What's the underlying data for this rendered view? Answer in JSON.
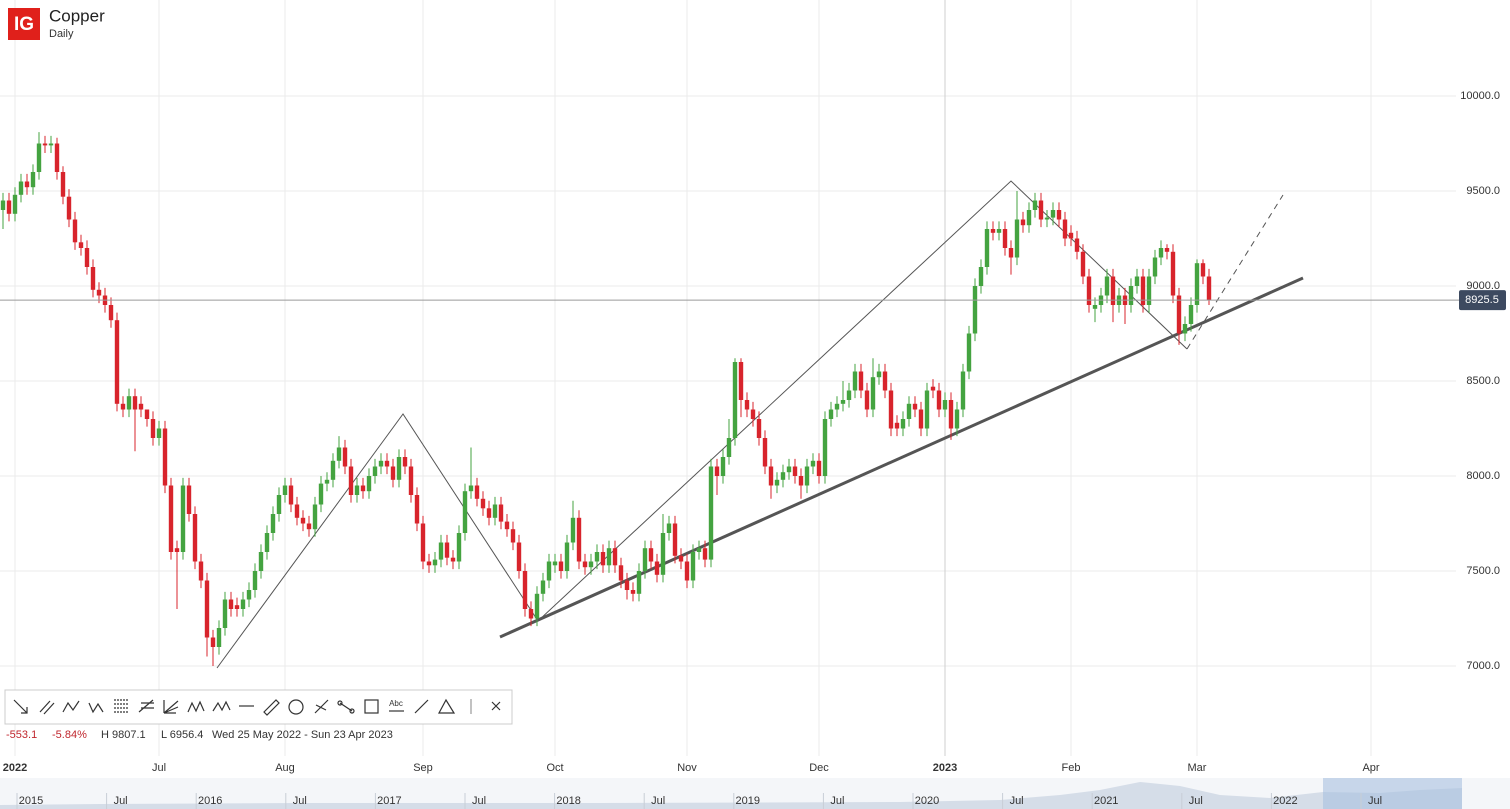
{
  "header": {
    "logo": "IG",
    "title": "Copper",
    "interval": "Daily"
  },
  "stats": {
    "change": "-553.1",
    "change_pct": "-5.84%",
    "high": "H 9807.1",
    "low": "L 6956.4",
    "range": "Wed 25 May 2022 - Sun 23 Apr 2023"
  },
  "toolbar": {
    "text_tool": "Abc"
  },
  "navigator": {
    "labels": [
      "2015",
      "Jul",
      "2016",
      "Jul",
      "2017",
      "Jul",
      "2018",
      "Jul",
      "2019",
      "Jul",
      "2020",
      "Jul",
      "2021",
      "Jul",
      "2022",
      "Jul"
    ]
  },
  "chart_data": {
    "type": "candlestick",
    "up_color": "#44a340",
    "down_color": "#d8242c",
    "grid": true,
    "ylim": [
      6550,
      10500
    ],
    "yticks": [
      {
        "value": 7000,
        "label": "7000.0"
      },
      {
        "value": 7500,
        "label": "7500.0"
      },
      {
        "value": 8000,
        "label": "8000.0"
      },
      {
        "value": 8500,
        "label": "8500.0"
      },
      {
        "value": 9000,
        "label": "9000.0"
      },
      {
        "value": 9500,
        "label": "9500.0"
      },
      {
        "value": 10000,
        "label": "10000.0"
      }
    ],
    "categories": [
      null,
      null,
      "2022",
      null,
      null,
      null,
      null,
      null,
      null,
      null,
      null,
      null,
      null,
      null,
      null,
      null,
      null,
      null,
      null,
      null,
      null,
      null,
      null,
      null,
      null,
      null,
      "Jul",
      null,
      null,
      null,
      null,
      null,
      null,
      null,
      null,
      null,
      null,
      null,
      null,
      null,
      null,
      null,
      null,
      null,
      null,
      null,
      null,
      "Aug",
      null,
      null,
      null,
      null,
      null,
      null,
      null,
      null,
      null,
      null,
      null,
      null,
      null,
      null,
      null,
      null,
      null,
      null,
      null,
      null,
      null,
      null,
      "Sep",
      null,
      null,
      null,
      null,
      null,
      null,
      null,
      null,
      null,
      null,
      null,
      null,
      null,
      null,
      null,
      null,
      null,
      null,
      null,
      null,
      null,
      "Oct",
      null,
      null,
      null,
      null,
      null,
      null,
      null,
      null,
      null,
      null,
      null,
      null,
      null,
      null,
      null,
      null,
      null,
      null,
      null,
      null,
      null,
      "Nov",
      null,
      null,
      null,
      null,
      null,
      null,
      null,
      null,
      null,
      null,
      null,
      null,
      null,
      null,
      null,
      null,
      null,
      null,
      null,
      null,
      null,
      "Dec",
      null,
      null,
      null,
      null,
      null,
      null,
      null,
      null,
      null,
      null,
      null,
      null,
      null,
      null,
      null,
      null,
      null,
      null,
      null,
      null,
      "2023",
      null,
      null,
      null,
      null,
      null,
      null,
      null,
      null,
      null,
      null,
      null,
      null,
      null,
      null,
      null,
      null,
      null,
      null,
      null,
      null,
      "Feb",
      null,
      null,
      null,
      null,
      null,
      null,
      null,
      null,
      null,
      null,
      null,
      null,
      null,
      null,
      null,
      null,
      null,
      null,
      null,
      null,
      "Mar",
      null,
      null,
      null,
      null,
      null,
      null,
      null,
      null,
      null,
      null,
      null,
      null,
      null,
      null,
      null,
      null,
      null,
      null,
      null,
      null,
      null,
      null,
      null,
      null,
      null,
      null,
      null,
      null,
      "Apr",
      null,
      null,
      null,
      null,
      null,
      null,
      null,
      null,
      null,
      null,
      null,
      null
    ],
    "open": [
      9400,
      9450,
      9380,
      9480,
      9550,
      9520,
      9600,
      9750,
      9740,
      9750,
      9600,
      9470,
      9350,
      9230,
      9200,
      9100,
      8980,
      8950,
      8900,
      8820,
      8380,
      8350,
      8420,
      8380,
      8350,
      8300,
      8200,
      8250,
      7950,
      7620,
      7600,
      7950,
      7800,
      7550,
      7450,
      7150,
      7100,
      7200,
      7350,
      7320,
      7300,
      7350,
      7400,
      7500,
      7600,
      7700,
      7800,
      7900,
      7950,
      7850,
      7780,
      7750,
      7720,
      7850,
      7960,
      7980,
      8080,
      8150,
      8050,
      7900,
      7950,
      7920,
      8000,
      8050,
      8080,
      8050,
      7980,
      8100,
      8050,
      7900,
      7750,
      7550,
      7530,
      7560,
      7650,
      7570,
      7550,
      7700,
      7920,
      7950,
      7880,
      7830,
      7780,
      7850,
      7760,
      7720,
      7650,
      7500,
      7300,
      7250,
      7380,
      7450,
      7530,
      7550,
      7500,
      7650,
      7780,
      7550,
      7520,
      7550,
      7600,
      7530,
      7620,
      7530,
      7450,
      7400,
      7380,
      7500,
      7620,
      7550,
      7480,
      7700,
      7750,
      7580,
      7550,
      7450,
      7600,
      7620,
      7560,
      8050,
      8000,
      8100,
      8200,
      8600,
      8400,
      8350,
      8300,
      8200,
      8050,
      7950,
      7980,
      8020,
      8050,
      8000,
      7950,
      8050,
      8080,
      8000,
      8300,
      8350,
      8380,
      8400,
      8450,
      8550,
      8450,
      8350,
      8520,
      8550,
      8450,
      8280,
      8250,
      8300,
      8380,
      8350,
      8250,
      8470,
      8450,
      8350,
      8400,
      8250,
      8350,
      8550,
      8750,
      9000,
      9100,
      9300,
      9280,
      9300,
      9200,
      9150,
      9350,
      9320,
      9400,
      9450,
      9350,
      9360,
      9400,
      9350,
      9280,
      9250,
      9180,
      9050,
      8880,
      8900,
      8950,
      9050,
      8900,
      8950,
      8900,
      9000,
      9050,
      8900,
      9050,
      9150,
      9200,
      9180,
      8950,
      8750,
      8800,
      8900,
      9120,
      9050,
      null,
      null,
      null,
      null,
      null,
      null,
      null,
      null,
      null,
      null,
      null,
      null,
      null,
      null,
      null,
      null,
      null,
      null,
      null,
      null,
      null,
      null,
      null,
      null,
      null,
      null,
      null,
      null,
      null,
      null,
      null,
      null,
      null,
      null,
      null,
      null,
      null,
      null,
      null
    ],
    "high": [
      9490,
      9490,
      9520,
      9590,
      9590,
      9640,
      9810,
      9790,
      9790,
      9780,
      9630,
      9510,
      9390,
      9270,
      9240,
      9140,
      9020,
      8990,
      8940,
      8860,
      8420,
      8460,
      8460,
      8420,
      8340,
      8340,
      8290,
      8290,
      7990,
      7660,
      7990,
      7990,
      7840,
      7590,
      7490,
      7190,
      7240,
      7390,
      7390,
      7360,
      7390,
      7440,
      7540,
      7640,
      7740,
      7840,
      7940,
      7990,
      7990,
      7890,
      7820,
      7790,
      7890,
      8000,
      8020,
      8120,
      8210,
      8190,
      8090,
      7990,
      7990,
      8040,
      8090,
      8120,
      8120,
      8090,
      8140,
      8140,
      8090,
      7940,
      7790,
      7590,
      7600,
      7690,
      7690,
      7610,
      7740,
      7960,
      8150,
      7990,
      7920,
      7870,
      7890,
      7890,
      7800,
      7760,
      7690,
      7540,
      7340,
      7420,
      7490,
      7590,
      7590,
      7590,
      7690,
      7870,
      7820,
      7590,
      7590,
      7640,
      7640,
      7660,
      7660,
      7570,
      7490,
      7440,
      7540,
      7660,
      7660,
      7590,
      7800,
      7790,
      7790,
      7620,
      7590,
      7640,
      7660,
      7660,
      8090,
      8090,
      8140,
      8300,
      8620,
      8620,
      8440,
      8390,
      8340,
      8240,
      8090,
      8020,
      8060,
      8090,
      8090,
      8040,
      8090,
      8120,
      8120,
      8340,
      8390,
      8420,
      8500,
      8490,
      8590,
      8590,
      8490,
      8620,
      8590,
      8590,
      8490,
      8320,
      8340,
      8420,
      8420,
      8390,
      8490,
      8510,
      8490,
      8440,
      8440,
      8390,
      8590,
      8790,
      9040,
      9140,
      9340,
      9340,
      9340,
      9340,
      9240,
      9500,
      9390,
      9440,
      9490,
      9490,
      9400,
      9440,
      9440,
      9390,
      9320,
      9290,
      9220,
      9090,
      8940,
      8990,
      9090,
      9090,
      8990,
      8990,
      9040,
      9090,
      9090,
      9090,
      9190,
      9240,
      9220,
      9220,
      8990,
      8840,
      8940,
      9140,
      9140,
      9090,
      null,
      null,
      null,
      null,
      null,
      null,
      null,
      null,
      null,
      null,
      null,
      null,
      null,
      null,
      null,
      null,
      null,
      null,
      null,
      null,
      null,
      null,
      null,
      null,
      null,
      null,
      null,
      null,
      null,
      null,
      null,
      null,
      null,
      null,
      null,
      null,
      null,
      null,
      null
    ],
    "low": [
      9300,
      9340,
      9340,
      9440,
      9480,
      9480,
      9560,
      9700,
      9700,
      9560,
      9430,
      9310,
      9190,
      9160,
      9060,
      8940,
      8910,
      8860,
      8780,
      8340,
      8310,
      8310,
      8130,
      8310,
      8260,
      8160,
      8160,
      7910,
      7560,
      7300,
      7560,
      7760,
      7510,
      7410,
      7050,
      7000,
      7060,
      7160,
      7260,
      7260,
      7260,
      7310,
      7360,
      7460,
      7560,
      7660,
      7760,
      7860,
      7810,
      7740,
      7710,
      7680,
      7680,
      7810,
      7920,
      7940,
      8040,
      8010,
      7860,
      7860,
      7880,
      7880,
      7960,
      8010,
      8010,
      7940,
      7940,
      8010,
      7860,
      7710,
      7510,
      7490,
      7490,
      7520,
      7530,
      7510,
      7510,
      7660,
      7880,
      7840,
      7790,
      7740,
      7740,
      7720,
      7680,
      7610,
      7460,
      7260,
      7210,
      7210,
      7340,
      7410,
      7490,
      7460,
      7460,
      7610,
      7510,
      7480,
      7480,
      7510,
      7490,
      7490,
      7490,
      7410,
      7350,
      7340,
      7340,
      7460,
      7510,
      7440,
      7440,
      7660,
      7540,
      7510,
      7410,
      7410,
      7560,
      7520,
      7520,
      7900,
      7960,
      8060,
      8160,
      8310,
      8310,
      8260,
      8160,
      8010,
      7880,
      7910,
      7940,
      7980,
      7960,
      7880,
      7910,
      8010,
      7960,
      7960,
      8260,
      8310,
      8340,
      8360,
      8410,
      8410,
      8310,
      8310,
      8480,
      8410,
      8210,
      8210,
      8210,
      8260,
      8310,
      8210,
      8210,
      8410,
      8310,
      8310,
      8190,
      8210,
      8310,
      8510,
      8710,
      8960,
      9060,
      9240,
      9240,
      9160,
      9060,
      9110,
      9280,
      9280,
      9360,
      9310,
      9310,
      9320,
      9310,
      9210,
      9210,
      9140,
      9010,
      8860,
      8810,
      8860,
      8910,
      8810,
      8860,
      8800,
      8860,
      8960,
      8860,
      8860,
      9010,
      9110,
      9140,
      8910,
      8690,
      8710,
      8760,
      8860,
      9010,
      8900,
      null,
      null,
      null,
      null,
      null,
      null,
      null,
      null,
      null,
      null,
      null,
      null,
      null,
      null,
      null,
      null,
      null,
      null,
      null,
      null,
      null,
      null,
      null,
      null,
      null,
      null,
      null,
      null,
      null,
      null,
      null,
      null,
      null,
      null,
      null,
      null,
      null,
      null,
      null
    ],
    "close": [
      9450,
      9380,
      9480,
      9550,
      9520,
      9600,
      9750,
      9740,
      9750,
      9600,
      9470,
      9350,
      9230,
      9200,
      9100,
      8980,
      8950,
      8900,
      8820,
      8380,
      8350,
      8420,
      8350,
      8350,
      8300,
      8200,
      8250,
      7950,
      7600,
      7600,
      7950,
      7800,
      7550,
      7450,
      7150,
      7100,
      7200,
      7350,
      7300,
      7300,
      7350,
      7400,
      7500,
      7600,
      7700,
      7800,
      7900,
      7950,
      7850,
      7780,
      7750,
      7720,
      7850,
      7960,
      7980,
      8080,
      8150,
      8050,
      7900,
      7950,
      7920,
      8000,
      8050,
      8080,
      8050,
      7980,
      8100,
      8050,
      7900,
      7750,
      7550,
      7530,
      7560,
      7650,
      7570,
      7550,
      7700,
      7920,
      7950,
      7880,
      7830,
      7780,
      7850,
      7760,
      7720,
      7650,
      7500,
      7300,
      7250,
      7380,
      7450,
      7550,
      7550,
      7500,
      7650,
      7780,
      7550,
      7520,
      7550,
      7600,
      7530,
      7620,
      7530,
      7450,
      7400,
      7380,
      7500,
      7620,
      7550,
      7480,
      7700,
      7750,
      7580,
      7550,
      7450,
      7600,
      7620,
      7560,
      8050,
      8000,
      8100,
      8200,
      8600,
      8400,
      8350,
      8300,
      8200,
      8050,
      7950,
      7980,
      8020,
      8050,
      8000,
      7950,
      8050,
      8080,
      8000,
      8300,
      8350,
      8380,
      8400,
      8450,
      8550,
      8450,
      8350,
      8520,
      8550,
      8450,
      8250,
      8250,
      8300,
      8380,
      8350,
      8250,
      8450,
      8450,
      8350,
      8400,
      8250,
      8350,
      8550,
      8750,
      9000,
      9100,
      9300,
      9280,
      9300,
      9200,
      9150,
      9350,
      9320,
      9400,
      9450,
      9350,
      9360,
      9400,
      9350,
      9250,
      9250,
      9180,
      9050,
      8900,
      8900,
      8950,
      9050,
      8900,
      8950,
      8900,
      9000,
      9050,
      8900,
      9050,
      9150,
      9200,
      9180,
      8950,
      8750,
      8800,
      8900,
      9120,
      9050,
      8925.5,
      null,
      null,
      null,
      null,
      null,
      null,
      null,
      null,
      null,
      null,
      null,
      null,
      null,
      null,
      null,
      null,
      null,
      null,
      null,
      null,
      null,
      null,
      null,
      null,
      null,
      null,
      null,
      null,
      null,
      null,
      null,
      null,
      null,
      null,
      null,
      null,
      null,
      null,
      null
    ]
  }
}
